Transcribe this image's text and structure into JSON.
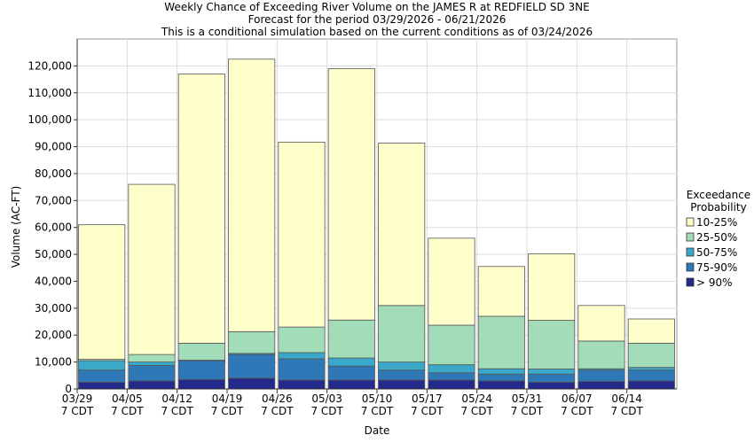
{
  "chart_data": {
    "type": "stacked_bar",
    "title": "Weekly Chance of Exceeding River Volume on the JAMES R at REDFIELD SD 3NE",
    "subtitle": "Forecast for the period 03/29/2026 - 06/21/2026",
    "subtitle2": "This is a conditional simulation based on the current conditions as of 03/24/2026",
    "x_label": "Date",
    "y_label": "Volume (AC-FT)",
    "legend_title": "Exceedance Probability",
    "legend_position": "right",
    "tick_suffix": "7 CDT",
    "categories": [
      "03/29",
      "04/05",
      "04/12",
      "04/19",
      "04/26",
      "05/03",
      "05/10",
      "05/17",
      "05/24",
      "05/31",
      "06/07",
      "06/14"
    ],
    "series": [
      {
        "name": "> 90%",
        "color": "#232a8c",
        "values": [
          2500,
          3000,
          3500,
          4000,
          3300,
          3300,
          3300,
          3300,
          3000,
          2500,
          2800,
          3000
        ]
      },
      {
        "name": "75-90%",
        "color": "#2f78b8",
        "values": [
          4500,
          5700,
          7000,
          8800,
          7900,
          5200,
          3700,
          2700,
          2500,
          3000,
          4200,
          4000
        ]
      },
      {
        "name": "50-75%",
        "color": "#3aa8c8",
        "values": [
          3500,
          1300,
          200,
          400,
          2300,
          3000,
          3000,
          3000,
          2000,
          1900,
          500,
          1000
        ]
      },
      {
        "name": "25-50%",
        "color": "#a3dcb8",
        "values": [
          500,
          2800,
          6300,
          8100,
          9500,
          14100,
          21000,
          14700,
          19500,
          18100,
          10300,
          9000
        ]
      },
      {
        "name": "10-25%",
        "color": "#ffffcc",
        "values": [
          50000,
          63200,
          100000,
          101200,
          68700,
          93400,
          60300,
          32300,
          18500,
          24700,
          13200,
          9000
        ]
      }
    ],
    "ylim": [
      0,
      130000
    ],
    "yticks": [
      0,
      {
        "value": 10000,
        "label": "10,000"
      },
      {
        "value": 20000,
        "label": "20,000"
      },
      {
        "value": 30000,
        "label": "30,000"
      },
      {
        "value": 40000,
        "label": "40,000"
      },
      {
        "value": 50000,
        "label": "50,000"
      },
      {
        "value": 60000,
        "label": "60,000"
      },
      {
        "value": 70000,
        "label": "70,000"
      },
      {
        "value": 80000,
        "label": "80,000"
      },
      {
        "value": 90000,
        "label": "90,000"
      },
      {
        "value": 100000,
        "label": "100,000"
      },
      {
        "value": 110000,
        "label": "110,000"
      },
      {
        "value": 120000,
        "label": "120,000"
      }
    ],
    "grid": true
  }
}
